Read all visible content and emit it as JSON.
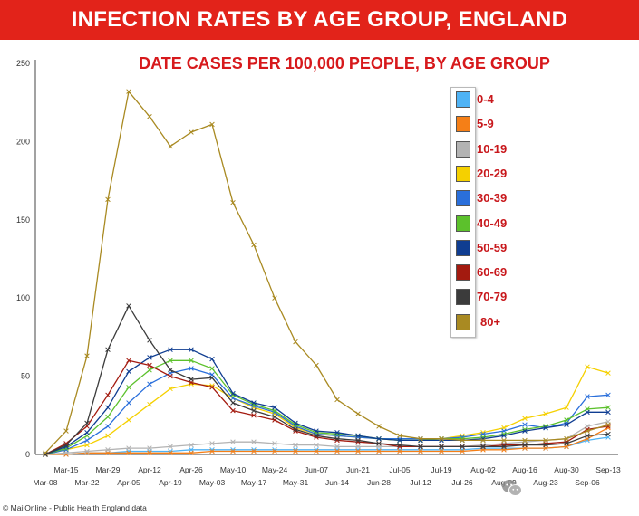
{
  "title": "INFECTION RATES BY AGE GROUP, ENGLAND",
  "colors": {
    "banner_background": "#e2231a",
    "banner_text": "#ffffff",
    "subtitle_text": "#d7191c",
    "legend_text": "#c8171b",
    "axis": "#444444"
  },
  "footer": {
    "source": "© MailOnline - Public Health England data"
  },
  "watermark": {
    "icon": "wechat-icon",
    "text": "英伦房产圈"
  },
  "chart_data": {
    "type": "line",
    "title": "DATE CASES PER 100,000 PEOPLE, BY AGE GROUP",
    "xlabel": "",
    "ylabel": "",
    "ylim": [
      0,
      250
    ],
    "y_ticks": [
      0,
      50,
      100,
      150,
      200,
      250
    ],
    "grid": false,
    "legend_position": "top-right",
    "categories": [
      "Mar-08",
      "Mar-15",
      "Mar-22",
      "Mar-29",
      "Apr-05",
      "Apr-12",
      "Apr-19",
      "Apr-26",
      "May-03",
      "May-10",
      "May-17",
      "May-24",
      "May-31",
      "Jun-07",
      "Jun-14",
      "Jun-21",
      "Jun-28",
      "Jul-05",
      "Jul-12",
      "Jul-19",
      "Jul-26",
      "Aug-02",
      "Aug-09",
      "Aug-16",
      "Aug-23",
      "Aug-30",
      "Sep-06",
      "Sep-13"
    ],
    "series": [
      {
        "name": "0-4",
        "color": "#4fb3f5",
        "values": [
          0,
          0,
          1,
          1,
          2,
          2,
          2,
          3,
          3,
          3,
          3,
          3,
          3,
          3,
          3,
          3,
          3,
          3,
          3,
          3,
          3,
          4,
          4,
          4,
          4,
          5,
          9,
          11
        ]
      },
      {
        "name": "5-9",
        "color": "#f57f17",
        "values": [
          0,
          0,
          1,
          1,
          1,
          1,
          1,
          1,
          2,
          2,
          2,
          2,
          2,
          2,
          2,
          2,
          2,
          2,
          2,
          2,
          2,
          3,
          3,
          4,
          4,
          5,
          10,
          17
        ]
      },
      {
        "name": "10-19",
        "color": "#b3b3b3",
        "values": [
          0,
          1,
          2,
          3,
          4,
          4,
          5,
          6,
          7,
          8,
          8,
          7,
          6,
          6,
          5,
          5,
          5,
          5,
          5,
          5,
          5,
          6,
          7,
          8,
          9,
          10,
          18,
          21
        ]
      },
      {
        "name": "20-29",
        "color": "#f5d000",
        "values": [
          0,
          3,
          6,
          12,
          22,
          32,
          42,
          45,
          44,
          36,
          30,
          26,
          17,
          13,
          12,
          11,
          10,
          9,
          9,
          10,
          12,
          14,
          17,
          23,
          26,
          30,
          56,
          52
        ]
      },
      {
        "name": "30-39",
        "color": "#2a6fdb",
        "values": [
          0,
          3,
          9,
          18,
          33,
          45,
          52,
          55,
          51,
          36,
          31,
          27,
          18,
          13,
          12,
          11,
          10,
          10,
          10,
          10,
          11,
          13,
          15,
          19,
          17,
          20,
          37,
          38
        ]
      },
      {
        "name": "40-49",
        "color": "#5cc12c",
        "values": [
          0,
          4,
          12,
          24,
          43,
          54,
          60,
          60,
          55,
          38,
          32,
          28,
          19,
          14,
          13,
          12,
          10,
          9,
          9,
          10,
          10,
          11,
          13,
          16,
          18,
          22,
          29,
          30
        ]
      },
      {
        "name": "50-59",
        "color": "#0f3d91",
        "values": [
          0,
          5,
          14,
          30,
          53,
          62,
          67,
          67,
          61,
          39,
          33,
          30,
          20,
          15,
          14,
          12,
          10,
          9,
          9,
          9,
          9,
          10,
          12,
          15,
          17,
          19,
          27,
          27
        ]
      },
      {
        "name": "60-69",
        "color": "#a31a0f",
        "values": [
          0,
          7,
          18,
          38,
          60,
          57,
          50,
          46,
          43,
          28,
          25,
          22,
          15,
          11,
          9,
          8,
          7,
          5,
          5,
          5,
          5,
          5,
          6,
          6,
          7,
          8,
          16,
          18
        ]
      },
      {
        "name": "70-79",
        "color": "#3b3b3b",
        "values": [
          0,
          6,
          20,
          67,
          95,
          73,
          54,
          48,
          49,
          33,
          28,
          24,
          16,
          12,
          10,
          9,
          7,
          6,
          5,
          5,
          5,
          5,
          5,
          6,
          6,
          7,
          12,
          13
        ]
      },
      {
        "name": "80+",
        "color": "#a98a22",
        "values": [
          1,
          15,
          63,
          163,
          232,
          216,
          197,
          206,
          211,
          161,
          134,
          100,
          72,
          57,
          35,
          26,
          18,
          12,
          10,
          10,
          9,
          9,
          9,
          9,
          9,
          10,
          15,
          19
        ]
      }
    ]
  }
}
